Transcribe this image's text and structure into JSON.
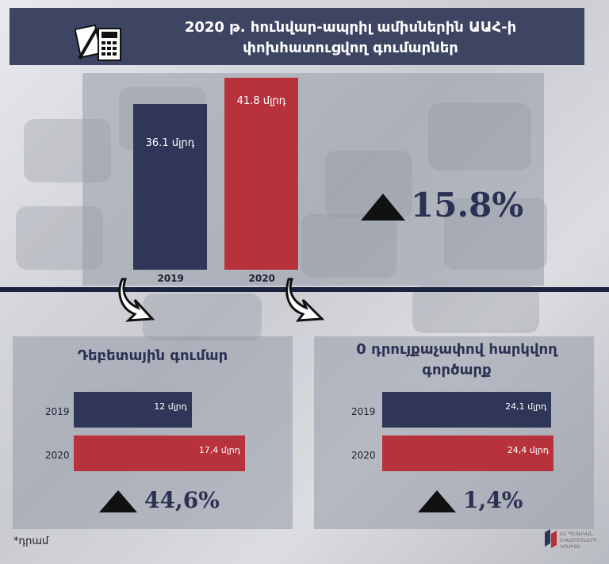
{
  "header": {
    "title": "2020 թ. հունվար-ապրիլ ամիսներին ԱԱՀ-ի փոխհատուցվող գումարներ"
  },
  "colors": {
    "navy": "#2f3657",
    "red": "#b8323c",
    "title_bg": "#3e4563"
  },
  "icons": {
    "header_icon": "calculator-icon",
    "arrow": "curved-arrow-down-icon",
    "up": "triangle-up-icon"
  },
  "chart_data": [
    {
      "type": "bar",
      "categories": [
        "2019",
        "2020"
      ],
      "values": [
        36.1,
        41.8
      ],
      "value_labels": [
        "36.1 մլրդ",
        "41.8 մլրդ"
      ],
      "colors": [
        "#2f3657",
        "#b8323c"
      ],
      "change": "15.8%"
    },
    {
      "type": "bar",
      "orientation": "horizontal",
      "title": "Դեբետային գումար",
      "categories": [
        "2019",
        "2020"
      ],
      "values": [
        12,
        17.4
      ],
      "value_labels": [
        "12 մլրդ",
        "17,4 մլրդ"
      ],
      "colors": [
        "#2f3657",
        "#b8323c"
      ],
      "change": "44,6%"
    },
    {
      "type": "bar",
      "orientation": "horizontal",
      "title": "0 դրույքաչափով հարկվող գործարք",
      "categories": [
        "2019",
        "2020"
      ],
      "values": [
        24.1,
        24.4
      ],
      "value_labels": [
        "24,1 մլրդ",
        "24,4 մլրդ"
      ],
      "colors": [
        "#2f3657",
        "#b8323c"
      ],
      "change": "1,4%"
    }
  ],
  "footnote": "*դրամ",
  "logo": {
    "text": "ՀՀ ՊԵՏԱԿԱՆ ԵԿԱՄՈՒՏՆԵՐԻ ԿՈՄԻՏԵ"
  }
}
